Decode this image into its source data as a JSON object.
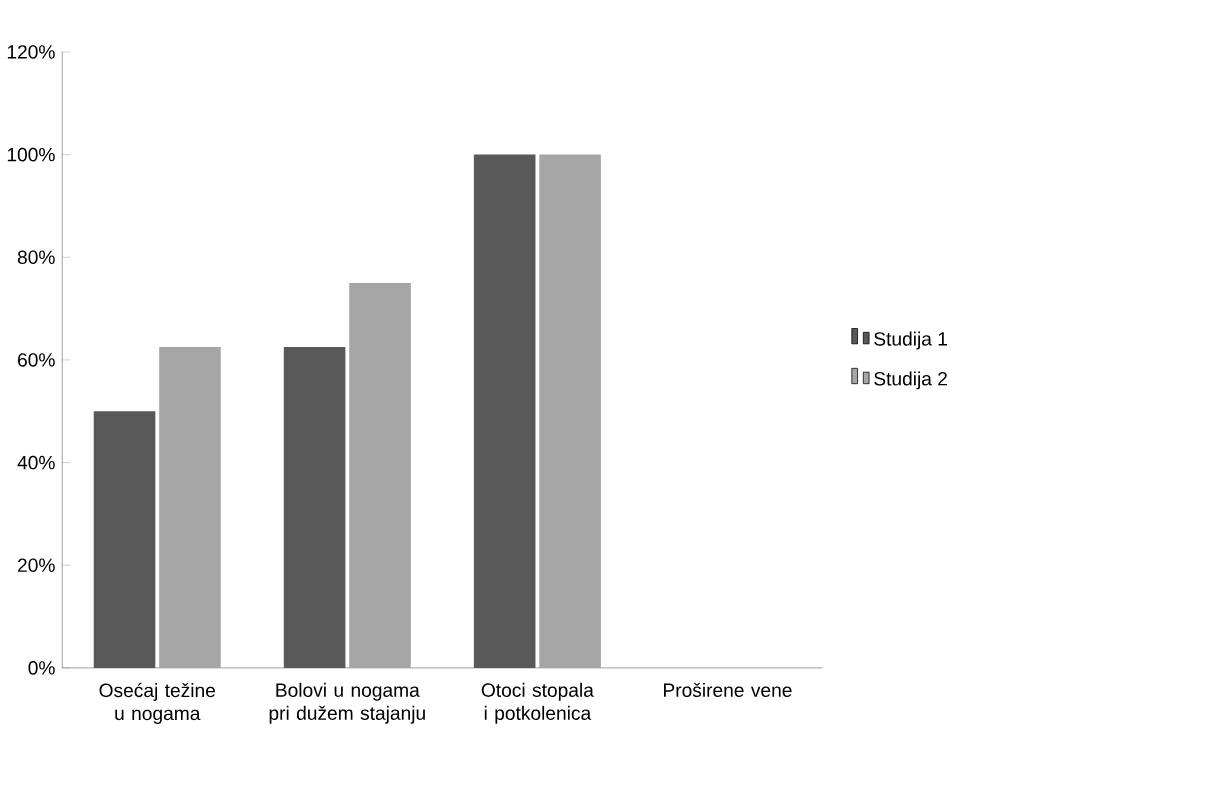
{
  "chart_data": {
    "type": "bar",
    "categories": [
      "Osećaj težine u nogama",
      "Bolovi u nogama pri dužem stajanju",
      "Otoci stopala i potkolenica",
      "Proširene vene"
    ],
    "series": [
      {
        "name": "Studija 1",
        "color": "#595959",
        "values": [
          50,
          62.5,
          100,
          0
        ]
      },
      {
        "name": "Studija 2",
        "color": "#a6a6a6",
        "values": [
          62.5,
          75,
          100,
          0
        ]
      }
    ],
    "ylim": [
      0,
      120
    ],
    "yticks": [
      {
        "value": 0,
        "label": "0%"
      },
      {
        "value": 20,
        "label": "20%"
      },
      {
        "value": 40,
        "label": "40%"
      },
      {
        "value": 60,
        "label": "60%"
      },
      {
        "value": 80,
        "label": "80%"
      },
      {
        "value": 100,
        "label": "100%"
      },
      {
        "value": 120,
        "label": "120%"
      }
    ],
    "grid": false,
    "legend": "right"
  }
}
